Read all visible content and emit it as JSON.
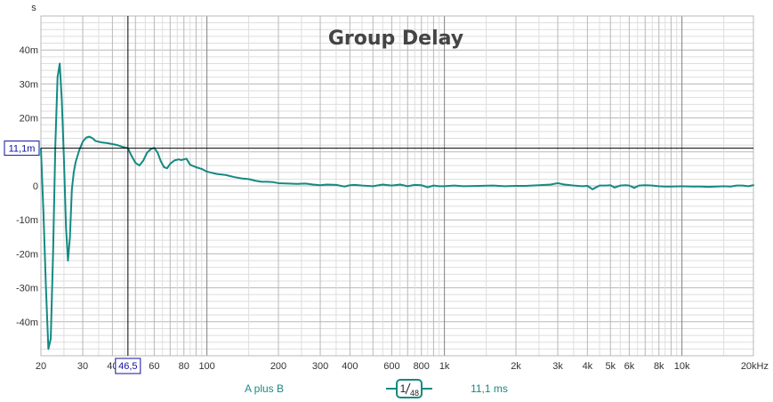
{
  "colors": {
    "trace": "#138a82",
    "grid_major": "#b8b8b8",
    "grid_minor": "#dedede",
    "decade_line": "#808080",
    "cursor": "#000000",
    "cursor_label": "#1010a0",
    "background": "#ffffff"
  },
  "legend": {
    "series_name": "A plus B",
    "smoothing_numerator": "1",
    "smoothing_denominator": "48",
    "cursor_value": "11,1 ms"
  },
  "cursor": {
    "x_label": "46,5",
    "y_label": "11,1m",
    "x_value": 46.5,
    "y_value": 0.0111
  },
  "chart_data": {
    "type": "line",
    "title": "Group Delay",
    "ylabel": "s",
    "xlabel": "",
    "x_scale": "log",
    "xlim": [
      20,
      20000
    ],
    "ylim": [
      -0.05,
      0.05
    ],
    "x_ticks": [
      {
        "value": 20,
        "label": "20"
      },
      {
        "value": 30,
        "label": "30"
      },
      {
        "value": 40,
        "label": "40"
      },
      {
        "value": 60,
        "label": "60"
      },
      {
        "value": 80,
        "label": "80"
      },
      {
        "value": 100,
        "label": "100"
      },
      {
        "value": 200,
        "label": "200"
      },
      {
        "value": 300,
        "label": "300"
      },
      {
        "value": 400,
        "label": "400"
      },
      {
        "value": 600,
        "label": "600"
      },
      {
        "value": 800,
        "label": "800"
      },
      {
        "value": 1000,
        "label": "1k"
      },
      {
        "value": 2000,
        "label": "2k"
      },
      {
        "value": 3000,
        "label": "3k"
      },
      {
        "value": 4000,
        "label": "4k"
      },
      {
        "value": 5000,
        "label": "5k"
      },
      {
        "value": 6000,
        "label": "6k"
      },
      {
        "value": 8000,
        "label": "8k"
      },
      {
        "value": 10000,
        "label": "10k"
      },
      {
        "value": 20000,
        "label": "20kHz"
      }
    ],
    "y_ticks": [
      {
        "value": 0.04,
        "label": "40m"
      },
      {
        "value": 0.03,
        "label": "30m"
      },
      {
        "value": 0.02,
        "label": "20m"
      },
      {
        "value": 0.01,
        "label": "10m"
      },
      {
        "value": 0,
        "label": "0"
      },
      {
        "value": -0.01,
        "label": "-10m"
      },
      {
        "value": -0.02,
        "label": "-20m"
      },
      {
        "value": -0.03,
        "label": "-30m"
      },
      {
        "value": -0.04,
        "label": "-40m"
      }
    ],
    "series": [
      {
        "name": "A plus B",
        "x": [
          20,
          20.5,
          21,
          21.5,
          22,
          22.5,
          23,
          23.5,
          24,
          24.5,
          25,
          25.5,
          26,
          26.5,
          27,
          27.5,
          28,
          29,
          30,
          31,
          32,
          33,
          34,
          36,
          38,
          40,
          42,
          44,
          46.5,
          48,
          50,
          52,
          54,
          56,
          58,
          60,
          62,
          64,
          66,
          68,
          70,
          73,
          76,
          78,
          80,
          82,
          85,
          90,
          95,
          100,
          110,
          120,
          130,
          140,
          150,
          160,
          170,
          180,
          190,
          200,
          220,
          240,
          260,
          280,
          300,
          320,
          350,
          380,
          400,
          420,
          450,
          500,
          550,
          600,
          650,
          700,
          750,
          800,
          850,
          900,
          950,
          1000,
          1100,
          1200,
          1400,
          1600,
          1800,
          2000,
          2200,
          2500,
          2800,
          3000,
          3200,
          3500,
          3800,
          4000,
          4200,
          4500,
          4800,
          5000,
          5200,
          5500,
          5800,
          6000,
          6300,
          6600,
          7000,
          7500,
          8000,
          8500,
          9000,
          10000,
          11000,
          12000,
          13000,
          14000,
          15000,
          16000,
          17000,
          18000,
          19000,
          20000
        ],
        "y": [
          0.011,
          -0.008,
          -0.03,
          -0.048,
          -0.045,
          -0.02,
          0.012,
          0.032,
          0.036,
          0.025,
          0.008,
          -0.012,
          -0.022,
          -0.015,
          -0.001,
          0.004,
          0.007,
          0.0105,
          0.013,
          0.0142,
          0.0145,
          0.014,
          0.0132,
          0.0128,
          0.0126,
          0.0123,
          0.012,
          0.0115,
          0.0111,
          0.009,
          0.0068,
          0.006,
          0.0075,
          0.0098,
          0.0108,
          0.0112,
          0.0098,
          0.0072,
          0.0055,
          0.0052,
          0.0065,
          0.0075,
          0.0078,
          0.0076,
          0.0078,
          0.008,
          0.0062,
          0.0055,
          0.005,
          0.0042,
          0.0035,
          0.0032,
          0.0026,
          0.0022,
          0.002,
          0.0015,
          0.0012,
          0.0012,
          0.0011,
          0.0008,
          0.0007,
          0.0006,
          0.0007,
          0.0004,
          0.0002,
          0.0004,
          0.0003,
          -0.0002,
          0.0002,
          0.0003,
          0.0001,
          -0.0001,
          0.0004,
          0.0001,
          0.0004,
          -0.0001,
          0.0003,
          0.0002,
          -0.0004,
          0.0001,
          -0.0001,
          -0.0001,
          0.0001,
          -0.0001,
          0.0,
          0.0001,
          -0.0001,
          0.0,
          0.0,
          0.0002,
          0.0004,
          0.0008,
          0.0004,
          0.0001,
          -0.0001,
          0.0,
          -0.001,
          0.0001,
          0.0001,
          0.0002,
          -0.0005,
          0.0001,
          0.0002,
          0.0001,
          -0.0006,
          0.0001,
          0.0002,
          0.0001,
          -0.0001,
          -0.0002,
          -0.0002,
          -0.0001,
          -0.0002,
          -0.0002,
          -0.0003,
          -0.0002,
          -0.0001,
          -0.0002,
          0.0001,
          0.0001,
          -0.0001,
          0.0002
        ]
      }
    ]
  }
}
